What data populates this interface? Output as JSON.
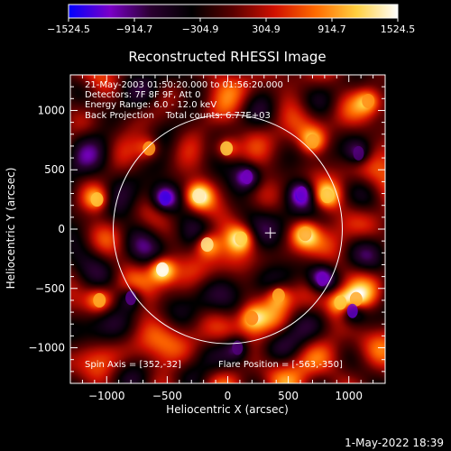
{
  "chart_data": {
    "type": "heatmap",
    "title": "Reconstructed RHESSI Image",
    "xlabel": "Heliocentric X (arcsec)",
    "ylabel": "Heliocentric Y (arcsec)",
    "xlim": [
      -1300,
      1300
    ],
    "ylim": [
      -1300,
      1300
    ],
    "x_ticks": [
      -1000,
      -500,
      0,
      500,
      1000
    ],
    "y_ticks": [
      -1000,
      -500,
      0,
      500,
      1000
    ],
    "colorbar": {
      "range": [
        -1524.5,
        1524.5
      ],
      "tick_values": [
        -1524.5,
        -914.7,
        -304.9,
        304.9,
        914.7,
        1524.5
      ],
      "tick_labels": [
        "−1524.5",
        "−914.7",
        "−304.9",
        "304.9",
        "914.7",
        "1524.5"
      ],
      "colors": [
        "#0000ff",
        "#7a00c8",
        "#2a0030",
        "#000000",
        "#5a0000",
        "#d01000",
        "#ff6a00",
        "#ffd040",
        "#ffffff"
      ]
    },
    "info_lines": [
      "21-May-2003 01:50:20.000 to 01:56:20.000",
      "Detectors: 7F 8F 9F, Att 0",
      "Energy Range: 6.0 - 12.0 keV",
      "Back Projection    Total counts: 6.77E+03"
    ],
    "spin_axis_text": "Spin Axis = [352,-32]",
    "flare_position_text": "Flare Position = [-563,-350]",
    "solar_disk_radius": 946,
    "marker_position": [
      352,
      -32
    ],
    "bright_sources": [
      {
        "x": -540,
        "y": -340,
        "value": 1500
      },
      {
        "x": -240,
        "y": 280,
        "value": 1350
      },
      {
        "x": -170,
        "y": -130,
        "value": 1300
      },
      {
        "x": 110,
        "y": -80,
        "value": 1150
      },
      {
        "x": -10,
        "y": 680,
        "value": 1150
      },
      {
        "x": -1080,
        "y": 250,
        "value": 1100
      },
      {
        "x": -1060,
        "y": -600,
        "value": 1000
      },
      {
        "x": 820,
        "y": 280,
        "value": 1100
      },
      {
        "x": 930,
        "y": -620,
        "value": 1100
      },
      {
        "x": 1060,
        "y": -590,
        "value": 1000
      },
      {
        "x": 700,
        "y": 740,
        "value": 950
      },
      {
        "x": 640,
        "y": -40,
        "value": 1000
      },
      {
        "x": -650,
        "y": 680,
        "value": 950
      },
      {
        "x": 420,
        "y": -560,
        "value": 1000
      },
      {
        "x": 200,
        "y": -750,
        "value": 850
      },
      {
        "x": 1160,
        "y": 1080,
        "value": 900
      }
    ],
    "dim_sources": [
      {
        "x": -520,
        "y": 260,
        "value": -1300
      },
      {
        "x": 160,
        "y": 440,
        "value": -1100
      },
      {
        "x": 610,
        "y": 300,
        "value": -1150
      },
      {
        "x": 780,
        "y": -420,
        "value": -1100
      },
      {
        "x": 1030,
        "y": -690,
        "value": -1200
      },
      {
        "x": -800,
        "y": -580,
        "value": -1000
      },
      {
        "x": 1080,
        "y": 640,
        "value": -950
      },
      {
        "x": 80,
        "y": -1000,
        "value": -950
      }
    ]
  },
  "footer": {
    "timestamp": "1-May-2022 18:39"
  }
}
